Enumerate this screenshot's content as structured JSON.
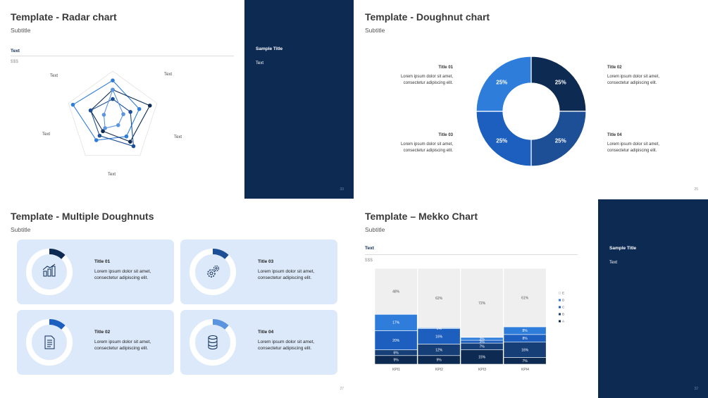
{
  "radar": {
    "title": "Template - Radar chart",
    "subtitle": "Subtitle",
    "chart_head": "Text",
    "unit": "$$$",
    "axis_labels": [
      "Text",
      "Text",
      "Text",
      "Text",
      "Text"
    ],
    "panel_title": "Sample Title",
    "panel_text": "Text",
    "page": "33"
  },
  "doughnut": {
    "title": "Template - Doughnut chart",
    "subtitle": "Subtitle",
    "items": [
      {
        "title": "Title 01",
        "body1": "Lorem ipsum dolor sit amet,",
        "body2": "consectetur adipiscing elit."
      },
      {
        "title": "Title 02",
        "body1": "Lorem ipsum dolor sit amet,",
        "body2": "consectetur adipiscing elit."
      },
      {
        "title": "Title 03",
        "body1": "Lorem ipsum dolor sit amet,",
        "body2": "consectetur adipiscing elit."
      },
      {
        "title": "Title 04",
        "body1": "Lorem ipsum dolor sit amet,",
        "body2": "consectetur adipiscing elit."
      }
    ],
    "page": "25"
  },
  "multi": {
    "title": "Template - Multiple Doughnuts",
    "subtitle": "Subtitle",
    "cards": [
      {
        "title": "Title 01",
        "body1": "Lorem ipsum dolor sit amet,",
        "body2": "consectetur adipiscing elit.",
        "icon": "bar-chart-icon",
        "fraction": 0.12,
        "color": "#0d2a52"
      },
      {
        "title": "Title 03",
        "body1": "Lorem ipsum dolor sit amet,",
        "body2": "consectetur adipiscing elit.",
        "icon": "gears-icon",
        "fraction": 0.12,
        "color": "#1c4f96"
      },
      {
        "title": "Title 02",
        "body1": "Lorem ipsum dolor sit amet,",
        "body2": "consectetur adipiscing elit.",
        "icon": "document-icon",
        "fraction": 0.12,
        "color": "#1c5fbf"
      },
      {
        "title": "Title 04",
        "body1": "Lorem ipsum dolor sit amet,",
        "body2": "consectetur adipiscing elit.",
        "icon": "database-icon",
        "fraction": 0.12,
        "color": "#5b95e0"
      }
    ],
    "page": "27"
  },
  "mekko": {
    "title": "Template – Mekko Chart",
    "subtitle": "Subtitle",
    "chart_head": "Text",
    "unit": "$$$",
    "panel_title": "Sample Title",
    "panel_text": "Text",
    "page": "32"
  },
  "chart_data": [
    {
      "type": "doughnut",
      "values": [
        25,
        25,
        25,
        25
      ],
      "labels": [
        "25%",
        "25%",
        "25%",
        "25%"
      ],
      "colors": [
        "#0d2a52",
        "#1c4f96",
        "#1c5fbf",
        "#2e7ddb"
      ]
    },
    {
      "type": "radar",
      "axes": [
        "Text",
        "Text",
        "Text",
        "Text",
        "Text"
      ],
      "max": 5,
      "series": [
        {
          "values": [
            4,
            3,
            2.5,
            3,
            4.5
          ],
          "color": "#2e7ddb"
        },
        {
          "values": [
            3,
            4.2,
            3.2,
            1.8,
            2.5
          ],
          "color": "#0d2a52"
        },
        {
          "values": [
            2,
            2,
            3.8,
            2.4,
            2.5
          ],
          "color": "#1c4f96"
        },
        {
          "values": [
            3,
            1.2,
            1,
            1.4,
            1
          ],
          "color": "#5b95e0"
        }
      ]
    },
    {
      "type": "mekko",
      "categories": [
        "KPI1",
        "KPI2",
        "KPI3",
        "KPI4"
      ],
      "widths": [
        1,
        1,
        1,
        1
      ],
      "series_names": [
        "A",
        "B",
        "C",
        "D",
        "E"
      ],
      "colors": [
        "#0d2a52",
        "#163f78",
        "#1c5fbf",
        "#2e7ddb",
        "#efefef"
      ],
      "values": [
        [
          9,
          6,
          20,
          17,
          48
        ],
        [
          9,
          12,
          16,
          1,
          62
        ],
        [
          15,
          7,
          3,
          3,
          72
        ],
        [
          7,
          16,
          8,
          8,
          61
        ]
      ],
      "labels": [
        [
          "9%",
          "6%",
          "20%",
          "17%",
          "48%"
        ],
        [
          "9%",
          "12%",
          "16%",
          "1%",
          "62%"
        ],
        [
          "15%",
          "7%",
          "3%",
          "3%",
          "72%"
        ],
        [
          "7%",
          "16%",
          "8%",
          "8%",
          "61%"
        ]
      ]
    }
  ]
}
